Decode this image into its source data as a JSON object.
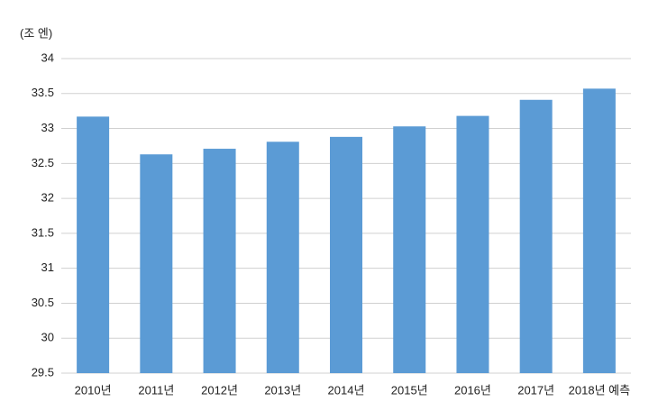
{
  "chart_data": {
    "type": "bar",
    "unit_label": "(조 엔)",
    "categories": [
      "2010년",
      "2011년",
      "2012년",
      "2013년",
      "2014년",
      "2015년",
      "2016년",
      "2017년",
      "2018년 예측"
    ],
    "values": [
      33.17,
      32.63,
      32.71,
      32.81,
      32.88,
      33.03,
      33.18,
      33.41,
      33.57
    ],
    "color": "#5b9bd5",
    "ylim": [
      29.5,
      34
    ],
    "yticks": [
      29.5,
      30,
      30.5,
      31,
      31.5,
      32,
      32.5,
      33,
      33.5,
      34
    ],
    "grid": true
  }
}
